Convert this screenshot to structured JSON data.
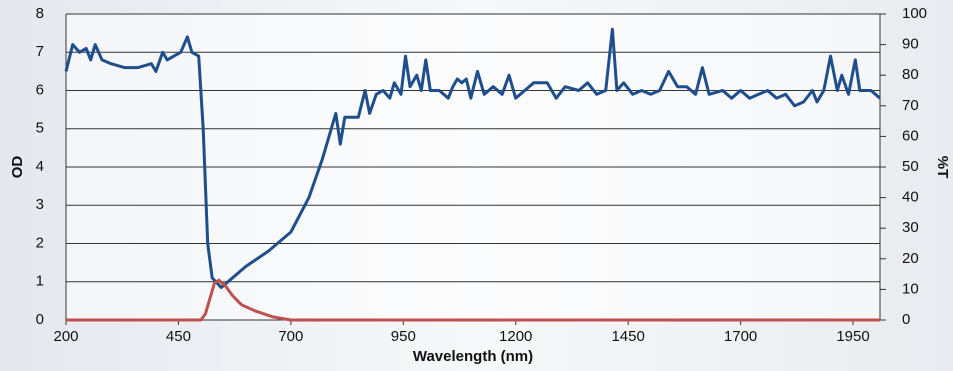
{
  "chart_data": {
    "type": "line",
    "xlabel": "Wavelength (nm)",
    "ylabel": "OD",
    "y2label": "%T",
    "xlim": [
      200,
      2010
    ],
    "xticks": [
      200,
      450,
      700,
      950,
      1200,
      1450,
      1700,
      1950
    ],
    "ylim": [
      0,
      8
    ],
    "yticks": [
      0,
      1,
      2,
      3,
      4,
      5,
      6,
      7,
      8
    ],
    "y2lim": [
      0,
      100
    ],
    "y2ticks": [
      0,
      10,
      20,
      30,
      40,
      50,
      60,
      70,
      80,
      90,
      100
    ],
    "grid": true,
    "series": [
      {
        "color": "#1f4e8c",
        "x": [
          200,
          215,
          230,
          245,
          255,
          265,
          280,
          300,
          330,
          360,
          390,
          400,
          415,
          425,
          440,
          455,
          470,
          480,
          495,
          505,
          515,
          525,
          545,
          560,
          600,
          650,
          700,
          740,
          770,
          800,
          810,
          820,
          850,
          865,
          875,
          890,
          905,
          920,
          930,
          945,
          955,
          965,
          980,
          990,
          1000,
          1010,
          1030,
          1050,
          1060,
          1070,
          1080,
          1090,
          1100,
          1115,
          1130,
          1150,
          1170,
          1185,
          1200,
          1220,
          1240,
          1270,
          1290,
          1310,
          1340,
          1360,
          1380,
          1400,
          1415,
          1425,
          1440,
          1460,
          1480,
          1500,
          1520,
          1540,
          1560,
          1580,
          1600,
          1615,
          1630,
          1660,
          1680,
          1700,
          1720,
          1740,
          1760,
          1780,
          1800,
          1820,
          1840,
          1860,
          1870,
          1885,
          1900,
          1915,
          1925,
          1940,
          1955,
          1965,
          1990,
          2010
        ],
        "values": [
          6.5,
          7.2,
          7.0,
          7.1,
          6.8,
          7.2,
          6.8,
          6.7,
          6.6,
          6.6,
          6.7,
          6.5,
          7.0,
          6.8,
          6.9,
          7.0,
          7.4,
          7.0,
          6.9,
          5.0,
          2.0,
          1.1,
          0.85,
          1.0,
          1.4,
          1.8,
          2.3,
          3.2,
          4.2,
          5.4,
          4.6,
          5.3,
          5.3,
          6.0,
          5.4,
          5.9,
          6.0,
          5.8,
          6.2,
          5.9,
          6.9,
          6.1,
          6.4,
          6.0,
          6.8,
          6.0,
          6.0,
          5.8,
          6.1,
          6.3,
          6.2,
          6.3,
          5.8,
          6.5,
          5.9,
          6.1,
          5.9,
          6.4,
          5.8,
          6.0,
          6.2,
          6.2,
          5.8,
          6.1,
          6.0,
          6.2,
          5.9,
          6.0,
          7.6,
          6.0,
          6.2,
          5.9,
          6.0,
          5.9,
          6.0,
          6.5,
          6.1,
          6.1,
          5.9,
          6.6,
          5.9,
          6.0,
          5.8,
          6.0,
          5.8,
          5.9,
          6.0,
          5.8,
          5.9,
          5.6,
          5.7,
          6.0,
          5.7,
          6.0,
          6.9,
          6.0,
          6.4,
          5.9,
          6.8,
          6.0,
          6.0,
          5.8
        ]
      },
      {
        "color": "#c0504d",
        "axis": "y2",
        "x": [
          200,
          495,
          500,
          510,
          520,
          530,
          540,
          555,
          570,
          590,
          620,
          660,
          700,
          2010
        ],
        "values": [
          0,
          0,
          0,
          2,
          7,
          12,
          13,
          11,
          8,
          5,
          3,
          1,
          0,
          0
        ]
      }
    ]
  }
}
